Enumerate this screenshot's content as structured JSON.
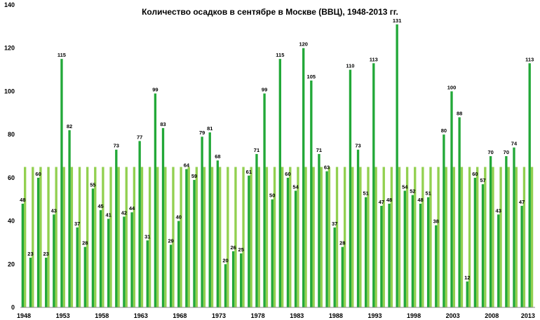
{
  "chart_data": {
    "type": "bar",
    "title": "Количество осадков в сентябре в Москве (ВВЦ), 1948-2013 гг.",
    "xlabel": "",
    "ylabel": "",
    "ylim": [
      0,
      140
    ],
    "yticks": [
      "0",
      "20",
      "40",
      "60",
      "80",
      "100",
      "120",
      "140"
    ],
    "xticks": [
      "1948",
      "1953",
      "1958",
      "1963",
      "1968",
      "1973",
      "1978",
      "1983",
      "1988",
      "1993",
      "1998",
      "2003",
      "2008",
      "2013"
    ],
    "grid": false,
    "legend": "none",
    "colors": {
      "precip": "#22a838",
      "norm": "#92d050"
    },
    "years": [
      1948,
      1949,
      1950,
      1951,
      1952,
      1953,
      1954,
      1955,
      1956,
      1957,
      1958,
      1959,
      1960,
      1961,
      1962,
      1963,
      1964,
      1965,
      1966,
      1967,
      1968,
      1969,
      1970,
      1971,
      1972,
      1973,
      1974,
      1975,
      1976,
      1977,
      1978,
      1979,
      1980,
      1981,
      1982,
      1983,
      1984,
      1985,
      1986,
      1987,
      1988,
      1989,
      1990,
      1991,
      1992,
      1993,
      1994,
      1995,
      1996,
      1997,
      1998,
      1999,
      2000,
      2001,
      2002,
      2003,
      2004,
      2005,
      2006,
      2007,
      2008,
      2009,
      2010,
      2011,
      2012,
      2013
    ],
    "series": [
      {
        "values": [
          48,
          23,
          60,
          23,
          43,
          115,
          82,
          37,
          28,
          55,
          45,
          41,
          73,
          42,
          44,
          77,
          31,
          99,
          83,
          29,
          40,
          64,
          59,
          79,
          81,
          68,
          20,
          26,
          25,
          61,
          71,
          99,
          50,
          115,
          60,
          54,
          120,
          105,
          71,
          63,
          37,
          28,
          110,
          73,
          51,
          113,
          47,
          48,
          131,
          54,
          52,
          48,
          51,
          38,
          80,
          100,
          88,
          12,
          60,
          57,
          70,
          43,
          70,
          74,
          47,
          113
        ]
      },
      {
        "values": [
          65,
          65,
          65,
          65,
          65,
          65,
          65,
          65,
          65,
          65,
          65,
          65,
          65,
          65,
          65,
          65,
          65,
          65,
          65,
          65,
          65,
          65,
          65,
          65,
          65,
          65,
          65,
          65,
          65,
          65,
          65,
          65,
          65,
          65,
          65,
          65,
          65,
          65,
          65,
          65,
          65,
          65,
          65,
          65,
          65,
          65,
          65,
          65,
          65,
          65,
          65,
          65,
          65,
          65,
          65,
          65,
          65,
          65,
          65,
          65,
          65,
          65,
          65,
          65,
          65,
          65
        ]
      }
    ]
  }
}
